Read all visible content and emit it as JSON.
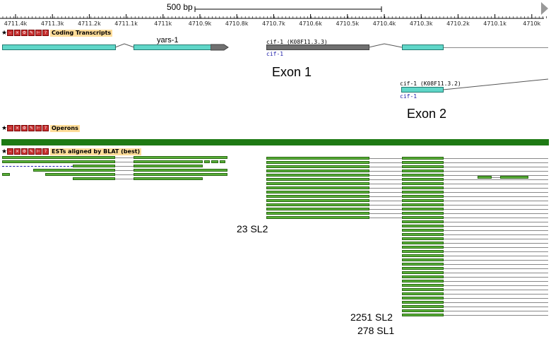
{
  "ruler": {
    "scale_label": "500 bp",
    "ticks": [
      "4711.4k",
      "4711.3k",
      "4711.2k",
      "4711.1k",
      "4711k",
      "4710.9k",
      "4710.8k",
      "4710.7k",
      "4710.6k",
      "4710.5k",
      "4710.4k",
      "4710.3k",
      "4710.2k",
      "4710.1k",
      "4710k"
    ]
  },
  "tracks": {
    "coding": {
      "title": "Coding Transcripts"
    },
    "operons": {
      "title": "Operons"
    },
    "ests": {
      "title": "ESTs aligned by BLAT (best)"
    }
  },
  "header_icons": [
    "star-icon",
    "minus-icon",
    "close-icon",
    "config-icon",
    "edit-icon",
    "bracket-icon",
    "help-icon"
  ],
  "genes": {
    "yars": "yars-1",
    "cif_a_name": "cif-1 (K08F11.3.3)",
    "cif_a_locus": "cif-1",
    "cif_b_name": "cif-1 (K08F11.3.2)",
    "cif_b_locus": "cif-1"
  },
  "annotations": {
    "exon1": "Exon 1",
    "exon2": "Exon 2",
    "sl_a": "23 SL2",
    "sl_b": "2251 SL2",
    "sl_c": "278 SL1"
  },
  "colors": {
    "exon_cyan": "#5fd6c8",
    "exon_grey": "#707070",
    "est_green": "#5ab039",
    "operon_green": "#1e7a14",
    "header_bg": "#ffdd99"
  }
}
